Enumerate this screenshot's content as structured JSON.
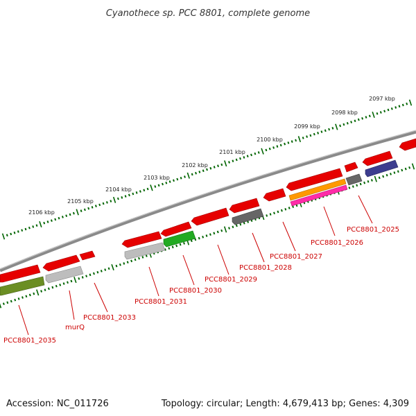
{
  "title": "Cyanothece sp. PCC 8801, complete genome",
  "footer": {
    "accession": "Accession: NC_011726",
    "summary": "Topology: circular; Length: 4,679,413 bp; Genes: 4,309"
  },
  "colors": {
    "backbone": "#8a8a8a",
    "tick_outer": "#006400",
    "tick_inner": "#006400",
    "label": "#cc0000",
    "gene_red": "#e60000",
    "gene_gray": "#bdbdbd",
    "gene_darkgray": "#666666",
    "gene_green": "#22aa22",
    "gene_olive": "#6b8e23",
    "gene_orange": "#ff9900",
    "gene_magenta": "#ff2ca8",
    "gene_navy": "#3d3d8f"
  },
  "kbp_labels": [
    "2097 kbp",
    "2098 kbp",
    "2099 kbp",
    "2100 kbp",
    "2101 kbp",
    "2102 kbp",
    "2103 kbp",
    "2104 kbp",
    "2105 kbp",
    "2106 kbp"
  ],
  "gene_labels": [
    "PCC8801_2025",
    "PCC8801_2026",
    "PCC8801_2027",
    "PCC8801_2028",
    "PCC8801_2029",
    "PCC8801_2030",
    "PCC8801_2031",
    "PCC8801_2033",
    "murQ",
    "PCC8801_2035"
  ]
}
